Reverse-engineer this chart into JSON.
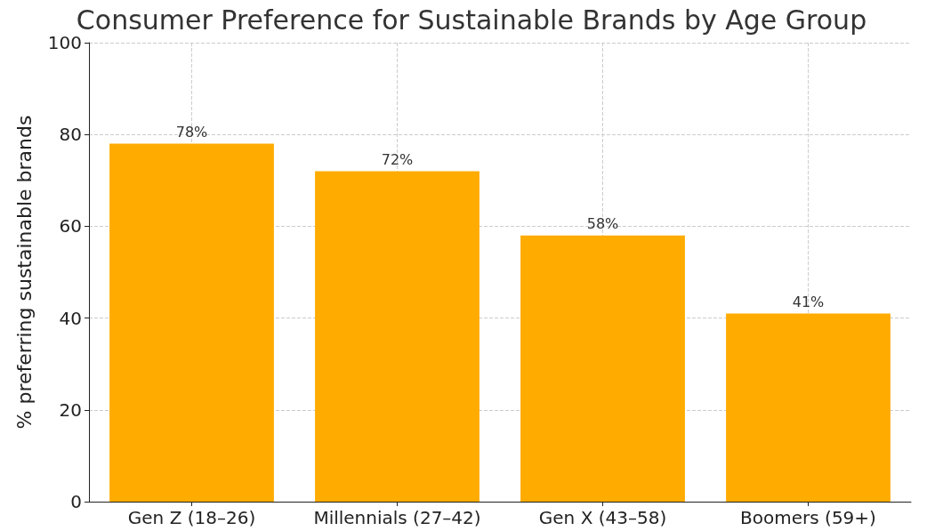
{
  "chart_data": {
    "type": "bar",
    "title": "Consumer Preference for Sustainable Brands by Age Group",
    "ylabel": "% preferring sustainable brands",
    "categories": [
      "Gen Z (18–26)",
      "Millennials (27–42)",
      "Gen X (43–58)",
      "Boomers (59+)"
    ],
    "values": [
      78,
      72,
      58,
      41
    ],
    "color": "#ffab00",
    "value_labels": [
      "78%",
      "72%",
      "58%",
      "41%"
    ],
    "ylim": [
      0,
      100
    ],
    "yticks": [
      0,
      20,
      40,
      60,
      80,
      100
    ],
    "grid": true
  }
}
